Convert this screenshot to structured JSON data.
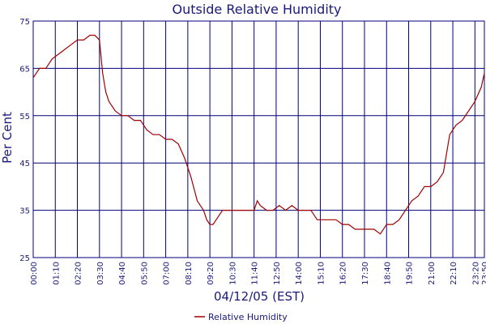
{
  "chart_data": {
    "type": "line",
    "title": "Outside Relative Humidity",
    "xlabel": "04/12/05 (EST)",
    "ylabel": "Per Cent",
    "ylim": [
      25,
      75
    ],
    "yticks": [
      25,
      35,
      45,
      55,
      65,
      75
    ],
    "x_range_minutes": [
      0,
      1430
    ],
    "xticks": [
      "00:00",
      "01:10",
      "02:20",
      "03:30",
      "04:40",
      "05:50",
      "07:00",
      "08:10",
      "09:20",
      "10:30",
      "11:40",
      "12:50",
      "14:00",
      "15:10",
      "16:20",
      "17:30",
      "18:40",
      "19:50",
      "21:00",
      "22:10",
      "23:20",
      "23:50"
    ],
    "grid": true,
    "legend": {
      "position": "bottom-center",
      "entries": [
        "Relative Humidity"
      ]
    },
    "colors": {
      "line": "#a00000",
      "grid": "#00007a",
      "text": "#1a1a7a"
    },
    "series": [
      {
        "name": "Relative Humidity",
        "x": [
          "00:00",
          "00:20",
          "00:40",
          "01:00",
          "01:20",
          "01:40",
          "02:00",
          "02:20",
          "02:40",
          "03:00",
          "03:15",
          "03:30",
          "03:40",
          "03:50",
          "04:00",
          "04:20",
          "04:40",
          "05:00",
          "05:20",
          "05:40",
          "06:00",
          "06:20",
          "06:40",
          "07:00",
          "07:20",
          "07:40",
          "08:00",
          "08:20",
          "08:40",
          "08:50",
          "09:00",
          "09:10",
          "09:20",
          "09:30",
          "09:40",
          "10:00",
          "10:20",
          "10:40",
          "11:00",
          "11:20",
          "11:40",
          "11:50",
          "12:00",
          "12:20",
          "12:40",
          "13:00",
          "13:20",
          "13:40",
          "14:00",
          "14:20",
          "14:40",
          "15:00",
          "15:20",
          "15:40",
          "16:00",
          "16:20",
          "16:40",
          "17:00",
          "17:20",
          "17:40",
          "18:00",
          "18:20",
          "18:40",
          "19:00",
          "19:20",
          "19:40",
          "20:00",
          "20:20",
          "20:40",
          "21:00",
          "21:20",
          "21:40",
          "22:00",
          "22:20",
          "22:40",
          "23:00",
          "23:20",
          "23:40",
          "23:50"
        ],
        "values": [
          63,
          65,
          65,
          67,
          68,
          69,
          70,
          71,
          71,
          72,
          72,
          71,
          64,
          60,
          58,
          56,
          55,
          55,
          54,
          54,
          52,
          51,
          51,
          50,
          50,
          49,
          46,
          42,
          37,
          36,
          35,
          33,
          32,
          32,
          33,
          35,
          35,
          35,
          35,
          35,
          35,
          37,
          36,
          35,
          35,
          36,
          35,
          36,
          35,
          35,
          35,
          33,
          33,
          33,
          33,
          32,
          32,
          31,
          31,
          31,
          31,
          30,
          32,
          32,
          33,
          35,
          37,
          38,
          40,
          40,
          41,
          43,
          51,
          53,
          54,
          56,
          58,
          61,
          64
        ]
      }
    ]
  }
}
